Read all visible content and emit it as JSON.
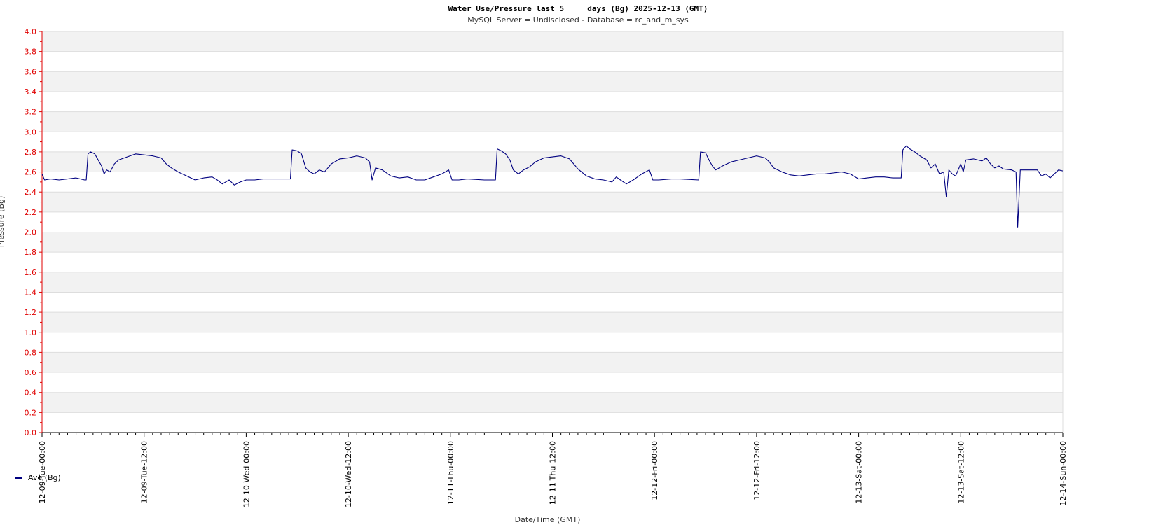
{
  "chart_data": {
    "type": "line",
    "title": "Water Use/Pressure last 5     days (Bg) 2025-12-13 (GMT)",
    "subtitle": "MySQL Server = Undisclosed - Database = rc_and_m_sys",
    "xlabel": "Date/Time (GMT)",
    "ylabel": "Pressure (Bg)",
    "ylim": [
      0,
      4.0
    ],
    "y_ticks": [
      "0.0",
      "0.2",
      "0.4",
      "0.6",
      "0.8",
      "1.0",
      "1.2",
      "1.4",
      "1.6",
      "1.8",
      "2.0",
      "2.2",
      "2.4",
      "2.6",
      "2.8",
      "3.0",
      "3.2",
      "3.4",
      "3.6",
      "3.8",
      "4.0"
    ],
    "x_range_hours": [
      0,
      120
    ],
    "x_ticks": [
      "12-09-Tue-00:00",
      "12-09-Tue-12:00",
      "12-10-Wed-00:00",
      "12-10-Wed-12:00",
      "12-11-Thu-00:00",
      "12-11-Thu-12:00",
      "12-12-Fri-00:00",
      "12-12-Fri-12:00",
      "12-13-Sat-00:00",
      "12-13-Sat-12:00",
      "12-14-Sun-00:00"
    ],
    "grid": true,
    "legend_position": "bottom-left",
    "series": [
      {
        "name": "Ave (Bg)",
        "color": "#000080",
        "points": [
          [
            0,
            2.58
          ],
          [
            0.3,
            2.52
          ],
          [
            1,
            2.53
          ],
          [
            2,
            2.52
          ],
          [
            3,
            2.53
          ],
          [
            4,
            2.54
          ],
          [
            5,
            2.52
          ],
          [
            5.2,
            2.52
          ],
          [
            5.4,
            2.78
          ],
          [
            5.7,
            2.8
          ],
          [
            6.2,
            2.78
          ],
          [
            6.6,
            2.72
          ],
          [
            7,
            2.66
          ],
          [
            7.3,
            2.58
          ],
          [
            7.6,
            2.62
          ],
          [
            8,
            2.6
          ],
          [
            8.5,
            2.68
          ],
          [
            9,
            2.72
          ],
          [
            10,
            2.75
          ],
          [
            11,
            2.78
          ],
          [
            12,
            2.77
          ],
          [
            13,
            2.76
          ],
          [
            14,
            2.74
          ],
          [
            14.6,
            2.68
          ],
          [
            15.2,
            2.64
          ],
          [
            16,
            2.6
          ],
          [
            17,
            2.56
          ],
          [
            18,
            2.52
          ],
          [
            19,
            2.54
          ],
          [
            20,
            2.55
          ],
          [
            20.6,
            2.52
          ],
          [
            21.2,
            2.48
          ],
          [
            22,
            2.52
          ],
          [
            22.6,
            2.47
          ],
          [
            23.3,
            2.5
          ],
          [
            24,
            2.52
          ],
          [
            25,
            2.52
          ],
          [
            26,
            2.53
          ],
          [
            28,
            2.53
          ],
          [
            29.2,
            2.53
          ],
          [
            29.4,
            2.82
          ],
          [
            30,
            2.81
          ],
          [
            30.5,
            2.78
          ],
          [
            31,
            2.64
          ],
          [
            31.5,
            2.6
          ],
          [
            32,
            2.58
          ],
          [
            32.6,
            2.62
          ],
          [
            33.2,
            2.6
          ],
          [
            34,
            2.68
          ],
          [
            35,
            2.73
          ],
          [
            36,
            2.74
          ],
          [
            37,
            2.76
          ],
          [
            38,
            2.74
          ],
          [
            38.5,
            2.7
          ],
          [
            38.8,
            2.52
          ],
          [
            39.2,
            2.64
          ],
          [
            40,
            2.62
          ],
          [
            41,
            2.56
          ],
          [
            42,
            2.54
          ],
          [
            43,
            2.55
          ],
          [
            44,
            2.52
          ],
          [
            45,
            2.52
          ],
          [
            46,
            2.55
          ],
          [
            47,
            2.58
          ],
          [
            47.8,
            2.62
          ],
          [
            48.2,
            2.52
          ],
          [
            49,
            2.52
          ],
          [
            50,
            2.53
          ],
          [
            52,
            2.52
          ],
          [
            53.3,
            2.52
          ],
          [
            53.5,
            2.83
          ],
          [
            54,
            2.81
          ],
          [
            54.5,
            2.78
          ],
          [
            55,
            2.72
          ],
          [
            55.4,
            2.62
          ],
          [
            56,
            2.58
          ],
          [
            56.6,
            2.62
          ],
          [
            57.3,
            2.65
          ],
          [
            58,
            2.7
          ],
          [
            59,
            2.74
          ],
          [
            60,
            2.75
          ],
          [
            61,
            2.76
          ],
          [
            62,
            2.73
          ],
          [
            62.5,
            2.68
          ],
          [
            63,
            2.63
          ],
          [
            64,
            2.56
          ],
          [
            65,
            2.53
          ],
          [
            66,
            2.52
          ],
          [
            67,
            2.5
          ],
          [
            67.5,
            2.55
          ],
          [
            68,
            2.52
          ],
          [
            68.7,
            2.48
          ],
          [
            69.5,
            2.52
          ],
          [
            70.5,
            2.58
          ],
          [
            71.4,
            2.62
          ],
          [
            71.8,
            2.52
          ],
          [
            72.5,
            2.52
          ],
          [
            74,
            2.53
          ],
          [
            75,
            2.53
          ],
          [
            77.2,
            2.52
          ],
          [
            77.4,
            2.8
          ],
          [
            78,
            2.79
          ],
          [
            78.4,
            2.72
          ],
          [
            78.8,
            2.66
          ],
          [
            79.2,
            2.62
          ],
          [
            80,
            2.66
          ],
          [
            81,
            2.7
          ],
          [
            82,
            2.72
          ],
          [
            83,
            2.74
          ],
          [
            84,
            2.76
          ],
          [
            85,
            2.74
          ],
          [
            85.5,
            2.7
          ],
          [
            86,
            2.64
          ],
          [
            87,
            2.6
          ],
          [
            88,
            2.57
          ],
          [
            89,
            2.56
          ],
          [
            90,
            2.57
          ],
          [
            91,
            2.58
          ],
          [
            92,
            2.58
          ],
          [
            93,
            2.59
          ],
          [
            94,
            2.6
          ],
          [
            95,
            2.58
          ],
          [
            96,
            2.53
          ],
          [
            97,
            2.54
          ],
          [
            98,
            2.55
          ],
          [
            99,
            2.55
          ],
          [
            100,
            2.54
          ],
          [
            101,
            2.54
          ],
          [
            101.2,
            2.82
          ],
          [
            101.6,
            2.86
          ],
          [
            102,
            2.83
          ],
          [
            102.6,
            2.8
          ],
          [
            103.2,
            2.76
          ],
          [
            104,
            2.72
          ],
          [
            104.5,
            2.64
          ],
          [
            105,
            2.68
          ],
          [
            105.5,
            2.58
          ],
          [
            106,
            2.6
          ],
          [
            106.3,
            2.35
          ],
          [
            106.6,
            2.62
          ],
          [
            107,
            2.58
          ],
          [
            107.4,
            2.56
          ],
          [
            108,
            2.68
          ],
          [
            108.3,
            2.6
          ],
          [
            108.6,
            2.72
          ],
          [
            109.5,
            2.73
          ],
          [
            110.5,
            2.71
          ],
          [
            111,
            2.74
          ],
          [
            111.5,
            2.68
          ],
          [
            112,
            2.64
          ],
          [
            112.5,
            2.66
          ],
          [
            113,
            2.63
          ],
          [
            114,
            2.62
          ],
          [
            114.5,
            2.6
          ],
          [
            114.7,
            2.05
          ],
          [
            115,
            2.62
          ],
          [
            116,
            2.62
          ],
          [
            117,
            2.62
          ],
          [
            117.5,
            2.56
          ],
          [
            118,
            2.58
          ],
          [
            118.5,
            2.54
          ],
          [
            119,
            2.58
          ],
          [
            119.5,
            2.62
          ],
          [
            120,
            2.61
          ]
        ]
      }
    ]
  }
}
